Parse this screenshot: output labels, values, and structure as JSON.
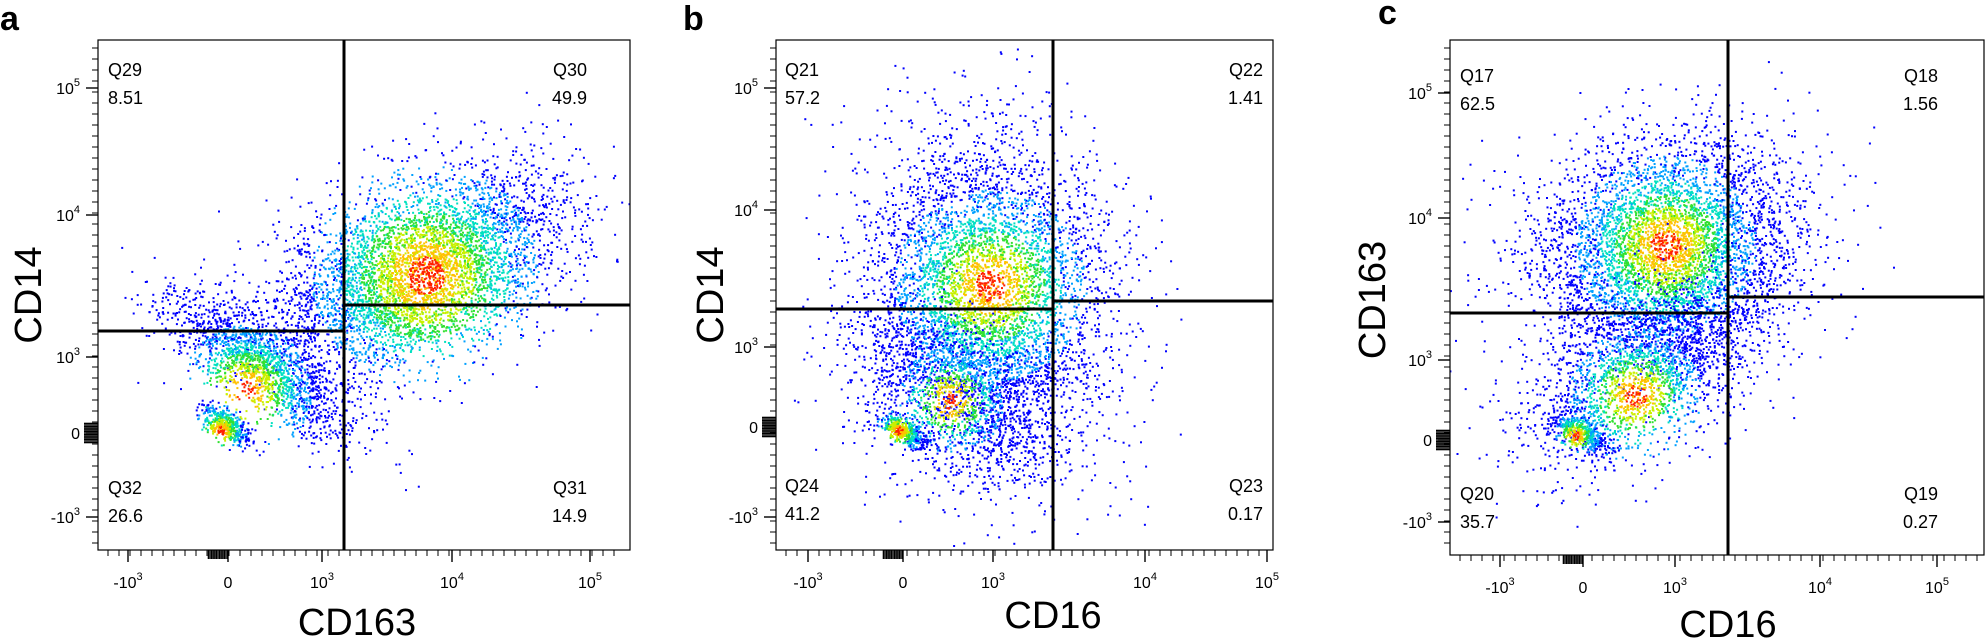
{
  "chart_data": [
    {
      "type": "scatter",
      "panel": "a",
      "xlabel": "CD163",
      "ylabel": "CD14",
      "x_ticks": [
        {
          "base": "-10",
          "exp": "3"
        },
        {
          "base": "0",
          "exp": ""
        },
        {
          "base": "10",
          "exp": "3"
        },
        {
          "base": "10",
          "exp": "4"
        },
        {
          "base": "10",
          "exp": "5"
        }
      ],
      "y_ticks": [
        {
          "base": "10",
          "exp": "5"
        },
        {
          "base": "10",
          "exp": "4"
        },
        {
          "base": "10",
          "exp": "3"
        },
        {
          "base": "0",
          "exp": ""
        },
        {
          "base": "-10",
          "exp": "3"
        }
      ],
      "quadrants": [
        {
          "name": "Q29",
          "value": "8.51",
          "pos": "top-left"
        },
        {
          "name": "Q30",
          "value": "49.9",
          "pos": "top-right"
        },
        {
          "name": "Q32",
          "value": "26.6",
          "pos": "bottom-left"
        },
        {
          "name": "Q31",
          "value": "14.9",
          "pos": "bottom-right"
        }
      ],
      "colors": [
        "#0000ff",
        "#00a0ff",
        "#00e0c0",
        "#30e030",
        "#c8f000",
        "#ffc000",
        "#ff2000"
      ]
    },
    {
      "type": "scatter",
      "panel": "b",
      "xlabel": "CD16",
      "ylabel": "CD14",
      "x_ticks": [
        {
          "base": "-10",
          "exp": "3"
        },
        {
          "base": "0",
          "exp": ""
        },
        {
          "base": "10",
          "exp": "3"
        },
        {
          "base": "10",
          "exp": "4"
        },
        {
          "base": "10",
          "exp": "5"
        }
      ],
      "y_ticks": [
        {
          "base": "10",
          "exp": "5"
        },
        {
          "base": "10",
          "exp": "4"
        },
        {
          "base": "10",
          "exp": "3"
        },
        {
          "base": "0",
          "exp": ""
        },
        {
          "base": "-10",
          "exp": "3"
        }
      ],
      "quadrants": [
        {
          "name": "Q21",
          "value": "57.2",
          "pos": "top-left"
        },
        {
          "name": "Q22",
          "value": "1.41",
          "pos": "top-right"
        },
        {
          "name": "Q24",
          "value": "41.2",
          "pos": "bottom-left"
        },
        {
          "name": "Q23",
          "value": "0.17",
          "pos": "bottom-right"
        }
      ],
      "colors": [
        "#0000ff",
        "#00a0ff",
        "#00e0c0",
        "#30e030",
        "#c8f000",
        "#ffc000",
        "#ff2000"
      ]
    },
    {
      "type": "scatter",
      "panel": "c",
      "xlabel": "CD16",
      "ylabel": "CD163",
      "x_ticks": [
        {
          "base": "-10",
          "exp": "3"
        },
        {
          "base": "0",
          "exp": ""
        },
        {
          "base": "10",
          "exp": "3"
        },
        {
          "base": "10",
          "exp": "4"
        },
        {
          "base": "10",
          "exp": "5"
        }
      ],
      "y_ticks": [
        {
          "base": "10",
          "exp": "5"
        },
        {
          "base": "10",
          "exp": "4"
        },
        {
          "base": "10",
          "exp": "3"
        },
        {
          "base": "0",
          "exp": ""
        },
        {
          "base": "-10",
          "exp": "3"
        }
      ],
      "quadrants": [
        {
          "name": "Q17",
          "value": "62.5",
          "pos": "top-left"
        },
        {
          "name": "Q18",
          "value": "1.56",
          "pos": "top-right"
        },
        {
          "name": "Q20",
          "value": "35.7",
          "pos": "bottom-left"
        },
        {
          "name": "Q19",
          "value": "0.27",
          "pos": "bottom-right"
        }
      ],
      "colors": [
        "#0000ff",
        "#00a0ff",
        "#00e0c0",
        "#30e030",
        "#c8f000",
        "#ffc000",
        "#ff2000"
      ]
    }
  ]
}
